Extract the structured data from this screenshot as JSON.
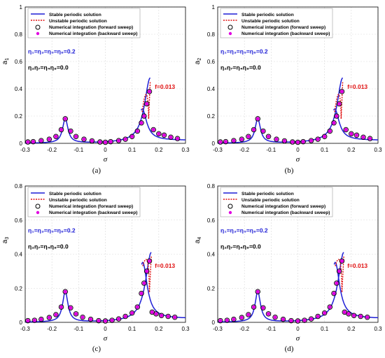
{
  "chart_data": [
    {
      "type": "line",
      "ylabel": "a",
      "ylabel_sub": "1",
      "xlabel": "σ",
      "caption": "(a)",
      "xlim": [
        -0.3,
        0.3
      ],
      "ylim": [
        0,
        1
      ],
      "x_ticks": [
        "-0.3",
        "-0.2",
        "-0.1",
        "0",
        "0.1",
        "0.2",
        "0.3"
      ],
      "y_ticks": [
        "0",
        "0.2",
        "0.4",
        "0.6",
        "0.8",
        "1"
      ],
      "legend": [
        "Stable periodic solution",
        "Unstable periodic solution",
        "Numerical integration (forward sweep)",
        "Numerical integration (backward sweep)"
      ],
      "annotations": {
        "eta_blue": "η₁=η₃=η₅=η₆=0.2",
        "eta_black": "η₂η₇=η₄η₈=0.0",
        "force": "f=0.013"
      },
      "peak_left": {
        "x": -0.15,
        "y": 0.18
      },
      "stable_upper_peak": {
        "x": 0.168,
        "y": 0.48
      },
      "stable_lower_peak": {
        "x": 0.138,
        "y": 0.23
      },
      "unstable_peak": {
        "x": 0.16,
        "y": 0.4
      },
      "forward_sweep": {
        "x": [
          -0.29,
          -0.27,
          -0.24,
          -0.21,
          -0.185,
          -0.165,
          -0.15,
          -0.13,
          -0.11,
          -0.08,
          -0.05,
          -0.02,
          0.0,
          0.02,
          0.05,
          0.075,
          0.1,
          0.12,
          0.135,
          0.145,
          0.155,
          0.165,
          0.18,
          0.2,
          0.22,
          0.245,
          0.27
        ],
        "y": [
          0.01,
          0.012,
          0.02,
          0.03,
          0.05,
          0.1,
          0.18,
          0.09,
          0.05,
          0.03,
          0.018,
          0.01,
          0.008,
          0.012,
          0.02,
          0.03,
          0.05,
          0.09,
          0.15,
          0.2,
          0.29,
          0.38,
          0.1,
          0.07,
          0.06,
          0.045,
          0.035
        ]
      },
      "backward_sweep": {
        "x": [
          -0.29,
          -0.27,
          -0.24,
          -0.21,
          -0.185,
          -0.165,
          -0.15,
          -0.13,
          -0.11,
          -0.08,
          -0.05,
          -0.02,
          0.0,
          0.02,
          0.05,
          0.075,
          0.1,
          0.12,
          0.135,
          0.145,
          0.155,
          0.165,
          0.18,
          0.2,
          0.22,
          0.245,
          0.27
        ],
        "y": [
          0.01,
          0.012,
          0.02,
          0.03,
          0.05,
          0.1,
          0.18,
          0.09,
          0.05,
          0.03,
          0.018,
          0.01,
          0.008,
          0.012,
          0.02,
          0.03,
          0.05,
          0.09,
          0.15,
          0.2,
          0.29,
          0.38,
          0.1,
          0.07,
          0.06,
          0.045,
          0.035
        ]
      }
    },
    {
      "type": "line",
      "ylabel": "a",
      "ylabel_sub": "2",
      "xlabel": "σ",
      "caption": "(b)",
      "xlim": [
        -0.3,
        0.3
      ],
      "ylim": [
        0,
        1
      ],
      "x_ticks": [
        "-0.3",
        "-0.2",
        "-0.1",
        "0",
        "0.1",
        "0.2",
        "0.3"
      ],
      "y_ticks": [
        "0",
        "0.2",
        "0.4",
        "0.6",
        "0.8",
        "1"
      ],
      "legend": [
        "Stable periodic solution",
        "Unstable periodic solution",
        "Numerical integration (forward sweep)",
        "Numerical integration (backward sweep)"
      ],
      "annotations": {
        "eta_blue": "η₁=η₃=η₅=η₆=0.2",
        "eta_black": "η₂η₇=η₄η₈=0.0",
        "force": "f=0.013"
      },
      "peak_left": {
        "x": -0.15,
        "y": 0.18
      },
      "stable_upper_peak": {
        "x": 0.168,
        "y": 0.48
      },
      "stable_lower_peak": {
        "x": 0.138,
        "y": 0.23
      },
      "unstable_peak": {
        "x": 0.16,
        "y": 0.4
      },
      "forward_sweep": {
        "x": [
          -0.29,
          -0.27,
          -0.24,
          -0.21,
          -0.185,
          -0.165,
          -0.15,
          -0.13,
          -0.11,
          -0.08,
          -0.05,
          -0.02,
          0.0,
          0.02,
          0.05,
          0.075,
          0.1,
          0.12,
          0.135,
          0.145,
          0.155,
          0.165,
          0.18,
          0.2,
          0.22,
          0.245,
          0.27
        ],
        "y": [
          0.01,
          0.012,
          0.02,
          0.03,
          0.05,
          0.1,
          0.18,
          0.09,
          0.05,
          0.03,
          0.018,
          0.01,
          0.008,
          0.012,
          0.02,
          0.03,
          0.05,
          0.09,
          0.15,
          0.2,
          0.29,
          0.38,
          0.1,
          0.07,
          0.06,
          0.045,
          0.035
        ]
      },
      "backward_sweep": {
        "x": [
          -0.29,
          -0.27,
          -0.24,
          -0.21,
          -0.185,
          -0.165,
          -0.15,
          -0.13,
          -0.11,
          -0.08,
          -0.05,
          -0.02,
          0.0,
          0.02,
          0.05,
          0.075,
          0.1,
          0.12,
          0.135,
          0.145,
          0.155,
          0.165,
          0.18,
          0.2,
          0.22,
          0.245,
          0.27
        ],
        "y": [
          0.01,
          0.012,
          0.02,
          0.03,
          0.05,
          0.1,
          0.18,
          0.09,
          0.05,
          0.03,
          0.018,
          0.01,
          0.008,
          0.012,
          0.02,
          0.03,
          0.05,
          0.09,
          0.15,
          0.2,
          0.29,
          0.38,
          0.1,
          0.07,
          0.06,
          0.045,
          0.035
        ]
      }
    },
    {
      "type": "line",
      "ylabel": "a",
      "ylabel_sub": "3",
      "xlabel": "σ",
      "caption": "(c)",
      "xlim": [
        -0.3,
        0.3
      ],
      "ylim": [
        0,
        0.8
      ],
      "x_ticks": [
        "-0.3",
        "-0.2",
        "-0.1",
        "0",
        "0.1",
        "0.2",
        "0.3"
      ],
      "y_ticks": [
        "0",
        "0.2",
        "0.4",
        "0.6",
        "0.8"
      ],
      "legend": [
        "Stable periodic solution",
        "Unstable periodic solution",
        "Numerical integration (forward sweep)",
        "Numerical integration (backward sweep)"
      ],
      "annotations": {
        "eta_blue": "η₁=η₃=η₅=η₆=0.2",
        "eta_black": "η₂η₇=η₄η₈=0.0",
        "force": "f=0.013"
      },
      "peak_left": {
        "x": -0.15,
        "y": 0.18
      },
      "stable_upper_peak": {
        "x": 0.172,
        "y": 0.41
      },
      "stable_lower_peak": {
        "x": 0.14,
        "y": 0.33
      },
      "unstable_peak": {
        "x": 0.163,
        "y": 0.39
      },
      "forward_sweep": {
        "x": [
          -0.29,
          -0.265,
          -0.24,
          -0.21,
          -0.185,
          -0.165,
          -0.15,
          -0.13,
          -0.11,
          -0.085,
          -0.055,
          -0.025,
          0.0,
          0.025,
          0.05,
          0.075,
          0.1,
          0.12,
          0.135,
          0.145,
          0.155,
          0.165,
          0.175,
          0.19,
          0.21,
          0.235,
          0.26
        ],
        "y": [
          0.01,
          0.012,
          0.018,
          0.028,
          0.045,
          0.09,
          0.18,
          0.085,
          0.05,
          0.03,
          0.018,
          0.01,
          0.008,
          0.012,
          0.02,
          0.035,
          0.055,
          0.09,
          0.17,
          0.23,
          0.3,
          0.36,
          0.06,
          0.05,
          0.04,
          0.035,
          0.03
        ]
      },
      "backward_sweep": {
        "x": [
          -0.29,
          -0.265,
          -0.24,
          -0.21,
          -0.185,
          -0.165,
          -0.15,
          -0.13,
          -0.11,
          -0.085,
          -0.055,
          -0.025,
          0.0,
          0.025,
          0.05,
          0.075,
          0.1,
          0.12,
          0.135,
          0.145,
          0.155,
          0.165,
          0.175,
          0.19,
          0.21,
          0.235,
          0.26
        ],
        "y": [
          0.01,
          0.012,
          0.018,
          0.028,
          0.045,
          0.09,
          0.18,
          0.085,
          0.05,
          0.03,
          0.018,
          0.01,
          0.008,
          0.012,
          0.02,
          0.035,
          0.055,
          0.09,
          0.17,
          0.23,
          0.3,
          0.36,
          0.06,
          0.05,
          0.04,
          0.035,
          0.03
        ]
      }
    },
    {
      "type": "line",
      "ylabel": "a",
      "ylabel_sub": "4",
      "xlabel": "σ",
      "caption": "(d)",
      "xlim": [
        -0.3,
        0.3
      ],
      "ylim": [
        0,
        0.8
      ],
      "x_ticks": [
        "-0.3",
        "-0.2",
        "-0.1",
        "0",
        "0.1",
        "0.2",
        "0.3"
      ],
      "y_ticks": [
        "0",
        "0.2",
        "0.4",
        "0.6",
        "0.8"
      ],
      "legend": [
        "Stable periodic solution",
        "Unstable periodic solution",
        "Numerical integration (forward sweep)",
        "Numerical integration (backward sweep)"
      ],
      "annotations": {
        "eta_blue": "η₁=η₃=η₅=η₆=0.2",
        "eta_black": "η₂η₇=η₄η₈=0.0",
        "force": "f=0.013"
      },
      "peak_left": {
        "x": -0.15,
        "y": 0.18
      },
      "stable_upper_peak": {
        "x": 0.172,
        "y": 0.41
      },
      "stable_lower_peak": {
        "x": 0.14,
        "y": 0.33
      },
      "unstable_peak": {
        "x": 0.163,
        "y": 0.39
      },
      "forward_sweep": {
        "x": [
          -0.29,
          -0.265,
          -0.24,
          -0.21,
          -0.185,
          -0.165,
          -0.15,
          -0.13,
          -0.11,
          -0.085,
          -0.055,
          -0.025,
          0.0,
          0.025,
          0.05,
          0.075,
          0.1,
          0.12,
          0.135,
          0.145,
          0.155,
          0.165,
          0.175,
          0.19,
          0.21,
          0.235,
          0.26
        ],
        "y": [
          0.01,
          0.012,
          0.018,
          0.028,
          0.045,
          0.09,
          0.18,
          0.085,
          0.05,
          0.03,
          0.018,
          0.01,
          0.008,
          0.012,
          0.02,
          0.035,
          0.055,
          0.09,
          0.17,
          0.23,
          0.3,
          0.36,
          0.06,
          0.05,
          0.04,
          0.035,
          0.03
        ]
      },
      "backward_sweep": {
        "x": [
          -0.29,
          -0.265,
          -0.24,
          -0.21,
          -0.185,
          -0.165,
          -0.15,
          -0.13,
          -0.11,
          -0.085,
          -0.055,
          -0.025,
          0.0,
          0.025,
          0.05,
          0.075,
          0.1,
          0.12,
          0.135,
          0.145,
          0.155,
          0.165,
          0.175,
          0.19,
          0.21,
          0.235,
          0.26
        ],
        "y": [
          0.01,
          0.012,
          0.018,
          0.028,
          0.045,
          0.09,
          0.18,
          0.085,
          0.05,
          0.03,
          0.018,
          0.01,
          0.008,
          0.012,
          0.02,
          0.035,
          0.055,
          0.09,
          0.17,
          0.23,
          0.3,
          0.36,
          0.06,
          0.05,
          0.04,
          0.035,
          0.03
        ]
      }
    }
  ],
  "colors": {
    "stable": "#1f1fd6",
    "unstable": "#e01010",
    "backward_marker": "#e000e0",
    "forward_marker": "#000000",
    "eta_blue": "#1f1fd6",
    "force": "#e01010"
  }
}
